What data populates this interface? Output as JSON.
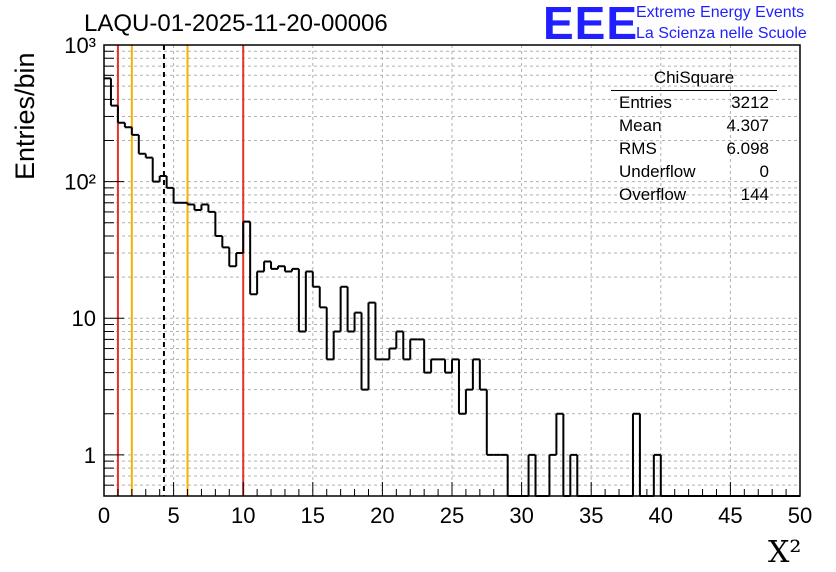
{
  "header": {
    "title": "LAQU-01-2025-11-20-00006",
    "logo_text": "EEE",
    "logo_line1": "Extreme Energy Events",
    "logo_line2": "La Scienza nelle Scuole"
  },
  "stats_box": {
    "title": "ChiSquare",
    "rows": [
      {
        "label": "Entries",
        "value": "3212"
      },
      {
        "label": "Mean",
        "value": "4.307"
      },
      {
        "label": "RMS",
        "value": "6.098"
      },
      {
        "label": "Underflow",
        "value": "0"
      },
      {
        "label": "Overflow",
        "value": "144"
      }
    ]
  },
  "chart_data": {
    "type": "histogram",
    "title": "LAQU-01-2025-11-20-00006",
    "xlabel": "X²",
    "ylabel": "Entries/bin",
    "xlim": [
      0,
      50
    ],
    "ylim": [
      0.5,
      1000
    ],
    "y_scale": "log",
    "grid": true,
    "bin_width": 0.5,
    "x_ticks": [
      "0",
      "5",
      "10",
      "15",
      "20",
      "25",
      "30",
      "35",
      "40",
      "45",
      "50"
    ],
    "y_ticks": [
      "1",
      "10",
      "10²",
      "10³"
    ],
    "bin_counts": [
      570,
      360,
      270,
      250,
      220,
      160,
      150,
      100,
      110,
      90,
      70,
      70,
      68,
      62,
      68,
      60,
      40,
      33,
      24,
      30,
      51,
      15,
      22,
      26,
      23,
      24,
      22,
      23,
      8,
      22,
      17,
      12,
      5,
      8,
      17,
      8,
      11,
      3,
      13,
      5,
      5,
      6,
      8,
      5,
      7,
      7,
      4,
      5,
      5,
      4,
      5,
      2,
      3,
      5,
      3,
      1,
      1,
      1,
      0.5,
      0.5,
      0.5,
      1,
      0.5,
      0.5,
      1,
      2,
      0.5,
      1,
      0.5,
      0.5,
      0.5,
      0.5,
      0.5,
      0.5,
      0.5,
      0.5,
      2,
      0.5,
      0.5,
      1,
      0.5,
      0.5,
      0.5,
      0.5,
      0.5,
      0.5,
      0.5,
      0.5,
      0.5,
      0.5,
      0.5,
      0.5,
      0.5,
      0.5,
      0.5,
      0.5,
      0.5,
      0.5,
      0.5,
      0.5
    ],
    "vertical_lines": [
      {
        "x": 1,
        "color": "#e8302a",
        "style": "solid"
      },
      {
        "x": 2,
        "color": "#f0b400",
        "style": "solid"
      },
      {
        "x": 4.307,
        "color": "#000000",
        "style": "dashed"
      },
      {
        "x": 6,
        "color": "#f0b400",
        "style": "solid"
      },
      {
        "x": 10,
        "color": "#e8302a",
        "style": "solid"
      }
    ]
  }
}
